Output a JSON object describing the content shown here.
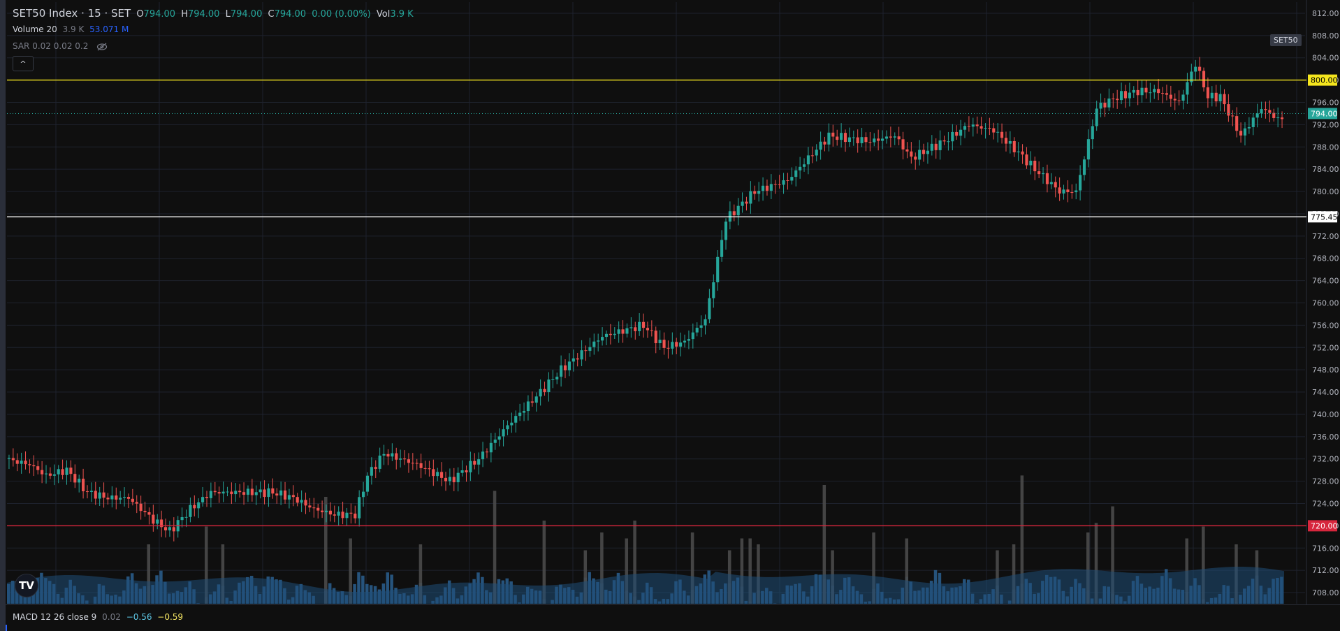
{
  "header": {
    "symbol": "SET50 Index · 15 · SET",
    "o_label": "O",
    "o_value": "794.00",
    "h_label": "H",
    "h_value": "794.00",
    "l_label": "L",
    "l_value": "794.00",
    "c_label": "C",
    "c_value": "794.00",
    "change": "0.00 (0.00%)",
    "vol_label": "Vol",
    "vol_value": "3.9 K"
  },
  "volume_indicator": {
    "label": "Volume 20",
    "value1": "3.9 K",
    "value2": "53.071 M"
  },
  "sar_indicator": {
    "label": "SAR 0.02 0.02 0.2"
  },
  "macd_indicator": {
    "label": "MACD 12 26 close 9",
    "value1": "0.02",
    "value2": "−0.56",
    "value3": "−0.59"
  },
  "symbol_tag": "SET50",
  "logo_text": "TV",
  "collapse_glyph": "^",
  "colors": {
    "up": "#26a69a",
    "down": "#ef5350",
    "background": "#0f0f0f",
    "grid": "#1e222d",
    "level_yellow": "#f5e61e",
    "level_white": "#ffffff",
    "level_red": "#d7263d",
    "volume_bar": "#2a5f8f",
    "volume_ma": "#1f4e79",
    "volume_spike": "#4a4a4a",
    "axis_text": "#b2b5be"
  },
  "chart_data": {
    "type": "candlestick",
    "y_axis_ticks": [
      "812.00",
      "808.00",
      "804.00",
      "800.00",
      "796.00",
      "792.00",
      "788.00",
      "784.00",
      "780.00",
      "776.00",
      "772.00",
      "768.00",
      "764.00",
      "760.00",
      "756.00",
      "752.00",
      "748.00",
      "744.00",
      "740.00",
      "736.00",
      "732.00",
      "728.00",
      "724.00",
      "720.00",
      "716.00",
      "712.00",
      "708.00"
    ],
    "ylim": [
      706,
      814
    ],
    "horizontal_levels": [
      {
        "label": "800.00",
        "value": 800.0,
        "color": "#f5e61e"
      },
      {
        "label": "775.45",
        "value": 775.45,
        "color": "#ffffff"
      },
      {
        "label": "720.00",
        "value": 720.0,
        "color": "#d7263d"
      }
    ],
    "last_price": {
      "label": "794.00",
      "value": 794.0
    },
    "price_path": [
      [
        0,
        732
      ],
      [
        6,
        731
      ],
      [
        10,
        729
      ],
      [
        15,
        730
      ],
      [
        20,
        726
      ],
      [
        25,
        725
      ],
      [
        30,
        725
      ],
      [
        33,
        723
      ],
      [
        36,
        721
      ],
      [
        40,
        719
      ],
      [
        45,
        723
      ],
      [
        50,
        726
      ],
      [
        55,
        726
      ],
      [
        60,
        726
      ],
      [
        65,
        726
      ],
      [
        70,
        725
      ],
      [
        75,
        723
      ],
      [
        80,
        722
      ],
      [
        85,
        722
      ],
      [
        88,
        729
      ],
      [
        92,
        733
      ],
      [
        100,
        731
      ],
      [
        108,
        728
      ],
      [
        115,
        732
      ],
      [
        122,
        738
      ],
      [
        130,
        744
      ],
      [
        135,
        748
      ],
      [
        140,
        751
      ],
      [
        145,
        754
      ],
      [
        150,
        755
      ],
      [
        155,
        756
      ],
      [
        160,
        752
      ],
      [
        165,
        753
      ],
      [
        170,
        757
      ],
      [
        175,
        775
      ],
      [
        182,
        780
      ],
      [
        190,
        782
      ],
      [
        200,
        790
      ],
      [
        210,
        789
      ],
      [
        216,
        790
      ],
      [
        220,
        786
      ],
      [
        228,
        789
      ],
      [
        234,
        792
      ],
      [
        240,
        791
      ],
      [
        246,
        787
      ],
      [
        250,
        784
      ],
      [
        256,
        780
      ],
      [
        260,
        780
      ],
      [
        262,
        786
      ],
      [
        265,
        795
      ],
      [
        270,
        797
      ],
      [
        275,
        798
      ],
      [
        280,
        798
      ],
      [
        285,
        796
      ],
      [
        289,
        803
      ],
      [
        292,
        797
      ],
      [
        295,
        797
      ],
      [
        300,
        790
      ],
      [
        305,
        795
      ],
      [
        309,
        793
      ]
    ],
    "n_candles": 310,
    "volume": {
      "label": "Volume 20",
      "spike_positions": [
        34,
        48,
        52,
        77,
        83,
        100,
        118,
        130,
        140,
        144,
        150,
        152,
        166,
        175,
        178,
        180,
        182,
        198,
        200,
        210,
        218,
        240,
        244,
        246,
        262,
        264,
        268,
        286,
        290,
        298,
        303
      ],
      "spike_heights": [
        0.5,
        0.65,
        0.5,
        0.9,
        0.55,
        0.5,
        0.95,
        0.7,
        0.45,
        0.6,
        0.55,
        0.7,
        0.6,
        0.45,
        0.55,
        0.55,
        0.5,
        1.0,
        0.45,
        0.6,
        0.55,
        0.45,
        0.5,
        1.08,
        0.6,
        0.68,
        0.82,
        0.55,
        0.65,
        0.5,
        0.45
      ]
    }
  }
}
